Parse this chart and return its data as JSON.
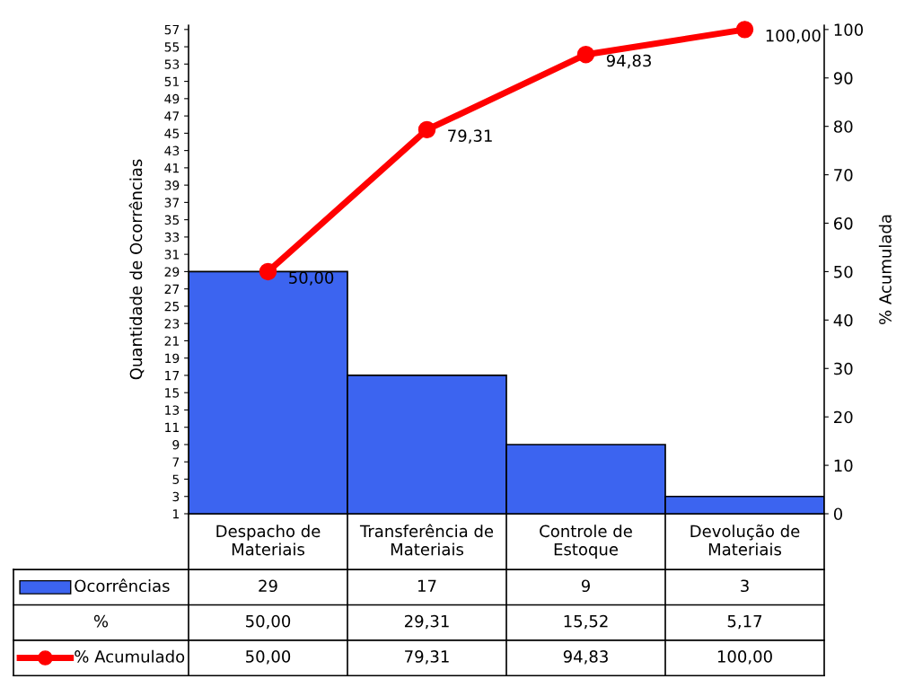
{
  "chart_data": {
    "type": "bar",
    "ylabel": "Quantidade de Ocorrências",
    "y2label": "% Acumulada",
    "categories": [
      "Despacho de\nMateriais",
      "Transferência de\nMateriais",
      "Controle de\nEstoque",
      "Devolução de\nMateriais"
    ],
    "series": [
      {
        "name": "Ocorrências",
        "color": "#3c64f0",
        "values": [
          29,
          17,
          9,
          3
        ],
        "value_labels": [
          "29",
          "17",
          "9",
          "3"
        ]
      },
      {
        "name": "% Acumulado",
        "type": "line",
        "axis": "y2",
        "color": "#ff0000",
        "marker": "circle",
        "values": [
          50.0,
          79.31,
          94.83,
          100.0
        ],
        "value_labels": [
          "50,00",
          "79,31",
          "94,83",
          "100,00"
        ]
      }
    ],
    "annotations": [
      "%",
      "50,00",
      "29,31",
      "15,52",
      "5,17"
    ],
    "ylim": [
      1,
      57.5
    ],
    "yticks": [
      1,
      3,
      5,
      7,
      9,
      11,
      13,
      15,
      17,
      19,
      21,
      23,
      25,
      27,
      29,
      31,
      33,
      35,
      37,
      39,
      41,
      43,
      45,
      47,
      49,
      51,
      53,
      55,
      57
    ],
    "y2lim": [
      0,
      100.9
    ],
    "y2ticks": [
      0,
      10,
      20,
      30,
      40,
      50,
      60,
      70,
      80,
      90,
      100
    ],
    "grid": false,
    "legend": "bottom left"
  }
}
